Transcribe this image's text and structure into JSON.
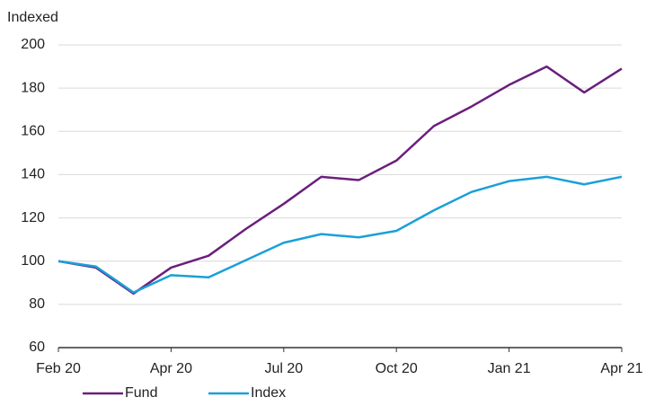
{
  "chart_data": {
    "type": "line",
    "y_label": "Indexed",
    "categories": [
      "Feb 20",
      null,
      null,
      "Apr 20",
      null,
      null,
      "Jul 20",
      null,
      null,
      "Oct 20",
      null,
      null,
      "Jan 21",
      null,
      null,
      "Apr 21"
    ],
    "series": [
      {
        "name": "Fund",
        "color": "#6b1f7c",
        "values": [
          100,
          97,
          85,
          97,
          102.5,
          115,
          126.5,
          139,
          137.5,
          146.5,
          162.5,
          171.5,
          181.5,
          190,
          178,
          189
        ]
      },
      {
        "name": "Index",
        "color": "#1aa0d8",
        "values": [
          100,
          97.5,
          85.5,
          93.5,
          92.5,
          100.5,
          108.5,
          112.5,
          111,
          114,
          123.5,
          132,
          137,
          139,
          135.5,
          139
        ]
      }
    ],
    "ylim": [
      60,
      200
    ],
    "yticks": [
      60,
      80,
      100,
      120,
      140,
      160,
      180,
      200
    ],
    "grid": true,
    "legend": "bottom"
  }
}
